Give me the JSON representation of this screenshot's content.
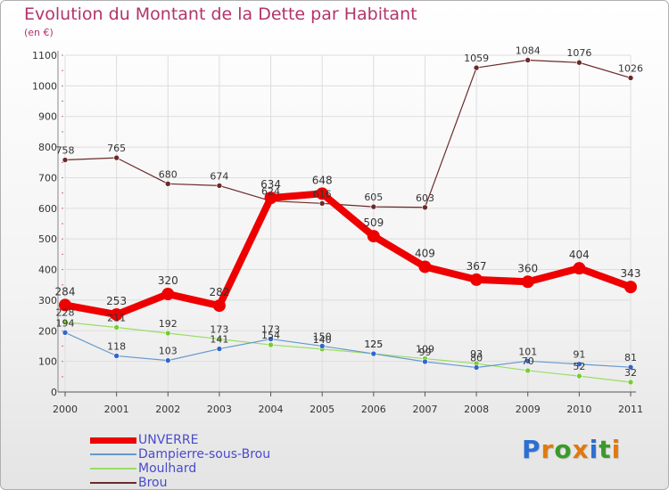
{
  "chart_data": {
    "type": "line",
    "title": "Evolution du Montant de la Dette par Habitant",
    "unit_label": "(en €)",
    "x": [
      "2000",
      "2001",
      "2002",
      "2003",
      "2004",
      "2005",
      "2006",
      "2007",
      "2008",
      "2009",
      "2010",
      "2011"
    ],
    "ylim": [
      0,
      1100
    ],
    "yticks": [
      "0",
      "100",
      "200",
      "300",
      "400",
      "500",
      "600",
      "700",
      "800",
      "900",
      "1000",
      "1100"
    ],
    "grid": true,
    "legend_position": "bottom-left",
    "series": [
      {
        "name": "Brou",
        "color": "#6b2a2a",
        "line_width": 1.2,
        "marker_radius": 3,
        "values": [
          758,
          765,
          680,
          674,
          624,
          616,
          605,
          603,
          1059,
          1084,
          1076,
          1026
        ],
        "labels": [
          "758",
          "765",
          "680",
          "674",
          "624",
          "616",
          "605",
          "603",
          "1059",
          "1084",
          "1076",
          "1026"
        ]
      },
      {
        "name": "Moulhard",
        "color": "#99dd66",
        "marker_color": "#77cc33",
        "line_width": 1.2,
        "marker_radius": 3,
        "values": [
          228,
          211,
          192,
          173,
          154,
          140,
          125,
          109,
          93,
          70,
          52,
          32
        ],
        "labels": [
          "228",
          "211",
          "192",
          "173",
          "154",
          "140",
          "125",
          "109",
          "93",
          "70",
          "52",
          "32"
        ]
      },
      {
        "name": "Dampierre-sous-Brou",
        "color": "#6699cc",
        "marker_color": "#3366cc",
        "line_width": 1.2,
        "marker_radius": 3,
        "values": [
          194,
          118,
          103,
          141,
          173,
          150,
          125,
          99,
          80,
          101,
          91,
          81
        ],
        "labels": [
          "194",
          "118",
          "103",
          "141",
          "173",
          "150",
          "125",
          "99",
          "80",
          "101",
          "91",
          "81"
        ]
      },
      {
        "name": "UNVERRE",
        "color": "#ee0000",
        "marker_color": "#ee0000",
        "line_width": 8,
        "marker_radius": 7,
        "values": [
          284,
          253,
          320,
          282,
          634,
          648,
          509,
          409,
          367,
          360,
          404,
          343
        ],
        "labels": [
          "284",
          "253",
          "320",
          "282",
          "634",
          "648",
          "509",
          "409",
          "367",
          "360",
          "404",
          "343"
        ]
      }
    ],
    "legend": [
      "UNVERRE",
      "Dampierre-sous-Brou",
      "Moulhard",
      "Brou"
    ]
  },
  "brand": {
    "letters": [
      "P",
      "r",
      "o",
      "x",
      "i",
      "t",
      "i"
    ],
    "colors": [
      "#2b6fd1",
      "#e07a10",
      "#3a9a2a",
      "#e07a10",
      "#2b6fd1",
      "#3a9a2a",
      "#e07a10"
    ]
  }
}
